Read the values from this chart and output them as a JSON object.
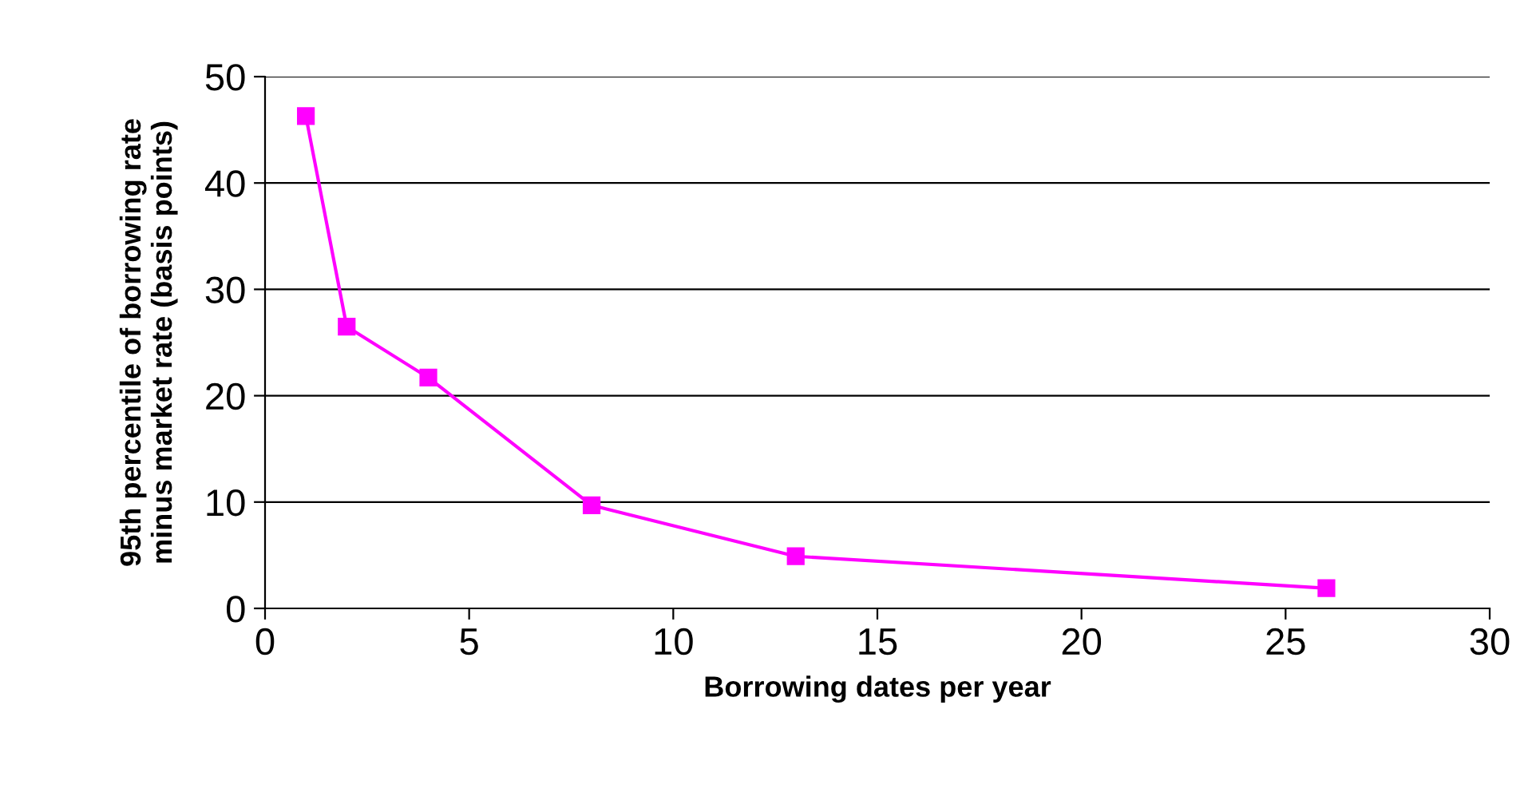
{
  "chart_data": {
    "type": "line",
    "xlabel": "Borrowing dates per year",
    "ylabel": "95th percentile of borrowing rate\nminus market rate (basis points)",
    "x": [
      1,
      2,
      4,
      8,
      13,
      26
    ],
    "series": [
      {
        "color": "#ff00ff",
        "values": [
          46.3,
          26.5,
          21.7,
          9.7,
          4.9,
          1.9
        ]
      }
    ],
    "xlim": [
      0,
      30
    ],
    "xticks": [
      0,
      5,
      10,
      15,
      20,
      25,
      30
    ],
    "ylim": [
      0,
      50
    ],
    "yticks": [
      0,
      10,
      20,
      30,
      40,
      50
    ],
    "grid": "y",
    "marker": "square",
    "line_style": "solid"
  }
}
